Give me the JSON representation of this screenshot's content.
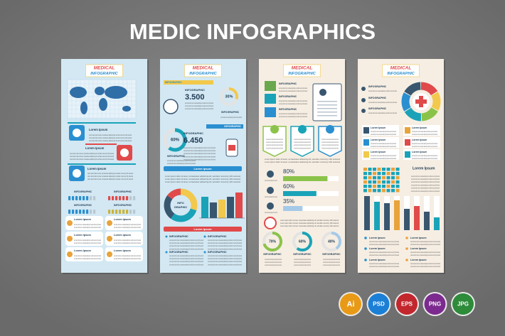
{
  "title": "MEDIC INFOGRAPHICS",
  "body": "Lorem ipsum dolor sit amet, consectetuer adipiscing elit, sed diam nonummy nibh euismod",
  "panels": [
    {
      "header": [
        "MEDICAL",
        "INFOGRAPHIC"
      ],
      "labels": [
        "Lorem Ipsum",
        "Lorem Ipsum",
        "Lorem Ipsum",
        "INFOGRAPHIC",
        "INFOGRAPHIC",
        "INFOGRAPHIC",
        "INFOGRAPHIC",
        "Lorem Ipsum",
        "Lorem Ipsum",
        "Lorem Ipsum",
        "Lorem Ipsum",
        "Lorem Ipsum",
        "Lorem Ipsum"
      ]
    },
    {
      "header": [
        "MEDICAL",
        "INFOGRAPHIC"
      ],
      "labels": [
        "INFOGRAPHIC",
        "INFOGRAPHIC",
        "3.500",
        "30%",
        "INFOGRAPHIC",
        "INFOGRAPHIC",
        "INFOGRAPHIC",
        "6.450",
        "60%",
        "INFOGRAPHIC",
        "INFO",
        "GRAPHIC",
        "Lorem Ipsum",
        "Lorem Ipsum",
        "INFOGRAPHIC",
        "INFOGRAPHIC",
        "INFOGRAPHIC",
        "INFOGRAPHIC"
      ]
    },
    {
      "header": [
        "MEDICAL",
        "INFOGRAPHIC"
      ],
      "labels": [
        "INFOGRAPHIC",
        "INFOGRAPHIC",
        "INFOGRAPHIC",
        "80%",
        "60%",
        "35%",
        "70%",
        "60%",
        "40%",
        "INFOGRAPHIC",
        "INFOGRAPHIC",
        "INFOGRAPHIC"
      ]
    },
    {
      "header": [
        "MEDICAL",
        "INFOGRAPHIC"
      ],
      "labels": [
        "INFOGRAPHIC",
        "INFOGRAPHIC",
        "INFOGRAPHIC",
        "Lorem Ipsum",
        "Lorem Ipsum",
        "Lorem Ipsum",
        "Lorem Ipsum",
        "Lorem Ipsum",
        "Lorem Ipsum",
        "Lorem Ipsum",
        "Lorem Ipsum",
        "Lorem Ipsum",
        "Lorem Ipsum",
        "Lorem Ipsum",
        "Lorem Ipsum",
        "Lorem Ipsum"
      ]
    }
  ],
  "formats": [
    "Ai",
    "PSD",
    "EPS",
    "PNG",
    "JPG"
  ]
}
